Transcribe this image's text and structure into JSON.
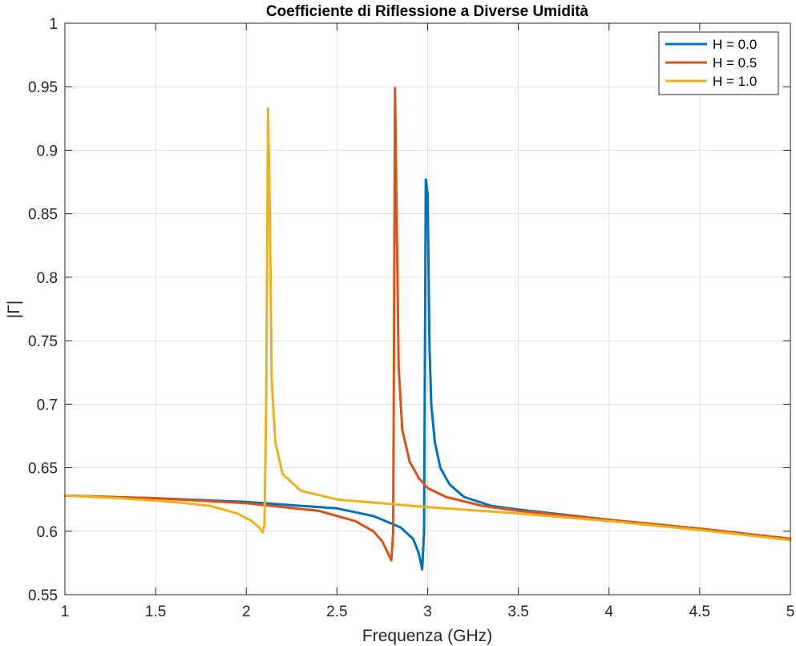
{
  "chart_data": {
    "type": "line",
    "title": "Coefficiente di Riflessione a Diverse Umidità",
    "xlabel": "Frequenza (GHz)",
    "ylabel": "|Γ|",
    "xlim": [
      1,
      5
    ],
    "ylim": [
      0.55,
      1
    ],
    "xticks": [
      1,
      1.5,
      2,
      2.5,
      3,
      3.5,
      4,
      4.5,
      5
    ],
    "xtick_labels": [
      "1",
      "1.5",
      "2",
      "2.5",
      "3",
      "3.5",
      "4",
      "4.5",
      "5"
    ],
    "yticks": [
      0.55,
      0.6,
      0.65,
      0.7,
      0.75,
      0.8,
      0.85,
      0.9,
      0.95,
      1
    ],
    "ytick_labels": [
      "0.55",
      "0.6",
      "0.65",
      "0.7",
      "0.75",
      "0.8",
      "0.85",
      "0.9",
      "0.95",
      "1"
    ],
    "grid": true,
    "legend_position": "top-right",
    "series": [
      {
        "name": "H = 0.0",
        "color": "#0072BD",
        "x": [
          1.0,
          1.5,
          2.0,
          2.5,
          2.7,
          2.85,
          2.92,
          2.95,
          2.97,
          2.98,
          2.99,
          3.0,
          3.01,
          3.02,
          3.04,
          3.07,
          3.12,
          3.2,
          3.35,
          3.5,
          4.0,
          4.5,
          5.0
        ],
        "y": [
          0.628,
          0.626,
          0.623,
          0.618,
          0.612,
          0.603,
          0.594,
          0.583,
          0.57,
          0.6,
          0.877,
          0.865,
          0.745,
          0.7,
          0.67,
          0.65,
          0.637,
          0.627,
          0.62,
          0.617,
          0.609,
          0.602,
          0.594
        ]
      },
      {
        "name": "H = 0.5",
        "color": "#D95319",
        "x": [
          1.0,
          1.5,
          2.0,
          2.4,
          2.6,
          2.7,
          2.75,
          2.78,
          2.8,
          2.81,
          2.82,
          2.83,
          2.84,
          2.86,
          2.9,
          2.95,
          3.0,
          3.1,
          3.3,
          3.5,
          4.0,
          4.5,
          5.0
        ],
        "y": [
          0.628,
          0.626,
          0.622,
          0.616,
          0.608,
          0.6,
          0.592,
          0.583,
          0.577,
          0.6,
          0.949,
          0.84,
          0.73,
          0.68,
          0.655,
          0.642,
          0.634,
          0.627,
          0.62,
          0.616,
          0.609,
          0.602,
          0.594
        ]
      },
      {
        "name": "H = 1.0",
        "color": "#EDB120",
        "x": [
          1.0,
          1.3,
          1.6,
          1.8,
          1.95,
          2.03,
          2.07,
          2.09,
          2.1,
          2.11,
          2.12,
          2.13,
          2.14,
          2.16,
          2.2,
          2.3,
          2.5,
          3.0,
          3.5,
          4.0,
          4.5,
          5.0
        ],
        "y": [
          0.628,
          0.626,
          0.623,
          0.62,
          0.614,
          0.608,
          0.603,
          0.599,
          0.605,
          0.7,
          0.933,
          0.85,
          0.72,
          0.67,
          0.645,
          0.632,
          0.625,
          0.619,
          0.614,
          0.608,
          0.601,
          0.593
        ]
      }
    ]
  }
}
